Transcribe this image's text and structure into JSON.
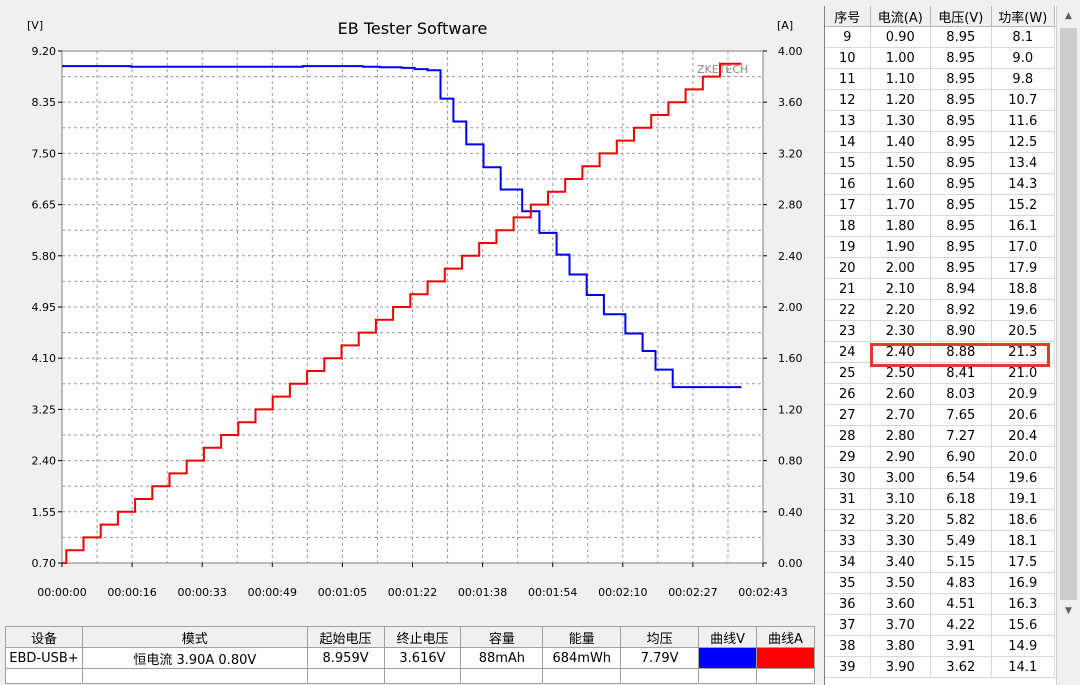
{
  "chart_data": {
    "type": "line",
    "title": "EB Tester Software",
    "ylabel_left": "[V]",
    "ylabel_right": "[A]",
    "watermark": "ZKETECH",
    "ylim_left": [
      0.7,
      9.2
    ],
    "ylim_right": [
      0.0,
      4.0
    ],
    "xlim_seconds": [
      0,
      163
    ],
    "left_ticks": [
      "9.20",
      "8.35",
      "7.50",
      "6.65",
      "5.80",
      "4.95",
      "4.10",
      "3.25",
      "2.40",
      "1.55",
      "0.70"
    ],
    "right_ticks": [
      "4.00",
      "3.60",
      "3.20",
      "2.80",
      "2.40",
      "2.00",
      "1.60",
      "1.20",
      "0.80",
      "0.40",
      "0.00"
    ],
    "x_ticks": [
      "00:00:00",
      "00:00:16",
      "00:00:33",
      "00:00:49",
      "00:01:05",
      "00:01:22",
      "00:01:38",
      "00:01:54",
      "00:02:10",
      "00:02:27",
      "00:02:43"
    ],
    "series": [
      {
        "name": "曲线V",
        "color": "#0000ee",
        "axis": "left",
        "x": [
          0,
          16,
          33,
          49,
          56,
          65,
          70,
          74,
          79,
          82,
          85,
          88,
          91,
          94,
          98,
          102,
          107,
          111,
          115,
          118,
          122,
          126,
          131,
          135,
          138,
          142,
          146,
          149,
          152,
          156,
          158
        ],
        "y": [
          8.95,
          8.94,
          8.94,
          8.94,
          8.95,
          8.95,
          8.94,
          8.93,
          8.92,
          8.9,
          8.88,
          8.41,
          8.03,
          7.65,
          7.27,
          6.9,
          6.54,
          6.18,
          5.82,
          5.49,
          5.15,
          4.83,
          4.51,
          4.22,
          3.91,
          3.62,
          3.62,
          3.62,
          3.62,
          3.62,
          3.62
        ]
      },
      {
        "name": "曲线A",
        "color": "#ee0000",
        "axis": "right",
        "x": [
          0,
          1,
          5,
          9,
          13,
          17,
          21,
          25,
          29,
          33,
          37,
          41,
          45,
          49,
          53,
          57,
          61,
          65,
          69,
          73,
          77,
          81,
          85,
          89,
          93,
          97,
          101,
          105,
          109,
          113,
          117,
          121,
          125,
          129,
          133,
          137,
          141,
          145,
          149,
          153,
          156,
          158
        ],
        "y": [
          0.0,
          0.1,
          0.2,
          0.3,
          0.4,
          0.5,
          0.6,
          0.7,
          0.8,
          0.9,
          1.0,
          1.1,
          1.2,
          1.3,
          1.4,
          1.5,
          1.6,
          1.7,
          1.8,
          1.9,
          2.0,
          2.1,
          2.2,
          2.3,
          2.4,
          2.5,
          2.6,
          2.7,
          2.8,
          2.9,
          3.0,
          3.1,
          3.2,
          3.3,
          3.4,
          3.5,
          3.6,
          3.7,
          3.8,
          3.9,
          3.9,
          3.9
        ]
      }
    ]
  },
  "info_table": {
    "headers": [
      "设备",
      "模式",
      "起始电压",
      "终止电压",
      "容量",
      "能量",
      "均压",
      "曲线V",
      "曲线A"
    ],
    "row": [
      "EBD-USB+",
      "恒电流  3.90A  0.80V",
      "8.959V",
      "3.616V",
      "88mAh",
      "684mWh",
      "7.79V",
      "",
      ""
    ],
    "curve_v_color": "#0000ff",
    "curve_a_color": "#ff0000"
  },
  "data_table": {
    "headers": [
      "序号",
      "电流(A)",
      "电压(V)",
      "功率(W)"
    ],
    "rows": [
      [
        "9",
        "0.90",
        "8.95",
        "8.1"
      ],
      [
        "10",
        "1.00",
        "8.95",
        "9.0"
      ],
      [
        "11",
        "1.10",
        "8.95",
        "9.8"
      ],
      [
        "12",
        "1.20",
        "8.95",
        "10.7"
      ],
      [
        "13",
        "1.30",
        "8.95",
        "11.6"
      ],
      [
        "14",
        "1.40",
        "8.95",
        "12.5"
      ],
      [
        "15",
        "1.50",
        "8.95",
        "13.4"
      ],
      [
        "16",
        "1.60",
        "8.95",
        "14.3"
      ],
      [
        "17",
        "1.70",
        "8.95",
        "15.2"
      ],
      [
        "18",
        "1.80",
        "8.95",
        "16.1"
      ],
      [
        "19",
        "1.90",
        "8.95",
        "17.0"
      ],
      [
        "20",
        "2.00",
        "8.95",
        "17.9"
      ],
      [
        "21",
        "2.10",
        "8.94",
        "18.8"
      ],
      [
        "22",
        "2.20",
        "8.92",
        "19.6"
      ],
      [
        "23",
        "2.30",
        "8.90",
        "20.5"
      ],
      [
        "24",
        "2.40",
        "8.88",
        "21.3"
      ],
      [
        "25",
        "2.50",
        "8.41",
        "21.0"
      ],
      [
        "26",
        "2.60",
        "8.03",
        "20.9"
      ],
      [
        "27",
        "2.70",
        "7.65",
        "20.6"
      ],
      [
        "28",
        "2.80",
        "7.27",
        "20.4"
      ],
      [
        "29",
        "2.90",
        "6.90",
        "20.0"
      ],
      [
        "30",
        "3.00",
        "6.54",
        "19.6"
      ],
      [
        "31",
        "3.10",
        "6.18",
        "19.1"
      ],
      [
        "32",
        "3.20",
        "5.82",
        "18.6"
      ],
      [
        "33",
        "3.30",
        "5.49",
        "18.1"
      ],
      [
        "34",
        "3.40",
        "5.15",
        "17.5"
      ],
      [
        "35",
        "3.50",
        "4.83",
        "16.9"
      ],
      [
        "36",
        "3.60",
        "4.51",
        "16.3"
      ],
      [
        "37",
        "3.70",
        "4.22",
        "15.6"
      ],
      [
        "38",
        "3.80",
        "3.91",
        "14.9"
      ],
      [
        "39",
        "3.90",
        "3.62",
        "14.1"
      ]
    ],
    "highlight_row": "24"
  },
  "scrollbar": {
    "up_arrow": "▲",
    "down_arrow": "▼"
  }
}
